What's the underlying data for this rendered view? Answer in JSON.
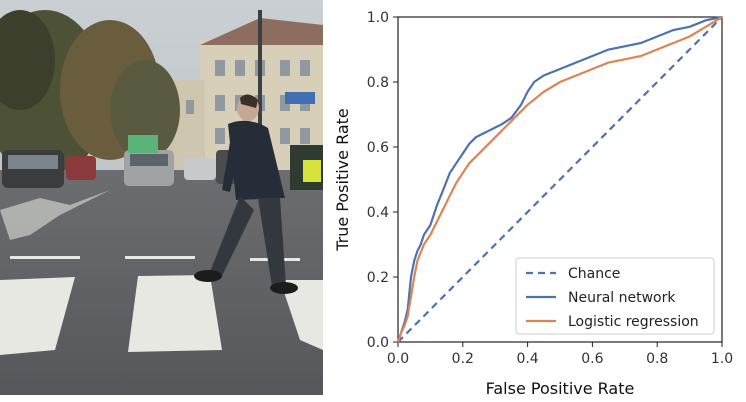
{
  "photo": {
    "description_icon": "pedestrian-crossing-photo"
  },
  "chart_data": {
    "type": "line",
    "title": "",
    "xlabel": "False Positive Rate",
    "ylabel": "True Positive Rate",
    "xlim": [
      0,
      1
    ],
    "ylim": [
      0,
      1
    ],
    "xticks": [
      "0.0",
      "0.2",
      "0.4",
      "0.6",
      "0.8",
      "1.0"
    ],
    "yticks": [
      "0.0",
      "0.2",
      "0.4",
      "0.6",
      "0.8",
      "1.0"
    ],
    "grid": false,
    "legend_position": "bottom-right",
    "series": [
      {
        "name": "Chance",
        "style": "dashed",
        "color": "#4c72b0",
        "x": [
          0,
          1
        ],
        "y": [
          0,
          1
        ]
      },
      {
        "name": "Neural network",
        "style": "solid",
        "color": "#4c72b0",
        "x": [
          0,
          0.01,
          0.02,
          0.03,
          0.04,
          0.05,
          0.06,
          0.07,
          0.08,
          0.1,
          0.12,
          0.14,
          0.16,
          0.18,
          0.2,
          0.22,
          0.24,
          0.26,
          0.28,
          0.3,
          0.32,
          0.35,
          0.38,
          0.4,
          0.42,
          0.45,
          0.5,
          0.55,
          0.6,
          0.65,
          0.7,
          0.75,
          0.8,
          0.85,
          0.9,
          0.95,
          1.0
        ],
        "y": [
          0,
          0.03,
          0.06,
          0.1,
          0.2,
          0.25,
          0.28,
          0.3,
          0.33,
          0.36,
          0.42,
          0.47,
          0.52,
          0.55,
          0.58,
          0.61,
          0.63,
          0.64,
          0.65,
          0.66,
          0.67,
          0.69,
          0.73,
          0.77,
          0.8,
          0.82,
          0.84,
          0.86,
          0.88,
          0.9,
          0.91,
          0.92,
          0.94,
          0.96,
          0.97,
          0.99,
          1.0
        ]
      },
      {
        "name": "Logistic regression",
        "style": "solid",
        "color": "#dd8452",
        "x": [
          0,
          0.01,
          0.02,
          0.03,
          0.04,
          0.05,
          0.06,
          0.08,
          0.1,
          0.12,
          0.14,
          0.16,
          0.18,
          0.2,
          0.22,
          0.24,
          0.26,
          0.28,
          0.3,
          0.33,
          0.36,
          0.4,
          0.45,
          0.5,
          0.55,
          0.6,
          0.65,
          0.7,
          0.75,
          0.8,
          0.85,
          0.9,
          0.95,
          1.0
        ],
        "y": [
          0,
          0.03,
          0.05,
          0.08,
          0.14,
          0.2,
          0.25,
          0.3,
          0.33,
          0.37,
          0.41,
          0.45,
          0.49,
          0.52,
          0.55,
          0.57,
          0.59,
          0.61,
          0.63,
          0.66,
          0.69,
          0.73,
          0.77,
          0.8,
          0.82,
          0.84,
          0.86,
          0.87,
          0.88,
          0.9,
          0.92,
          0.94,
          0.97,
          1.0
        ]
      }
    ]
  }
}
